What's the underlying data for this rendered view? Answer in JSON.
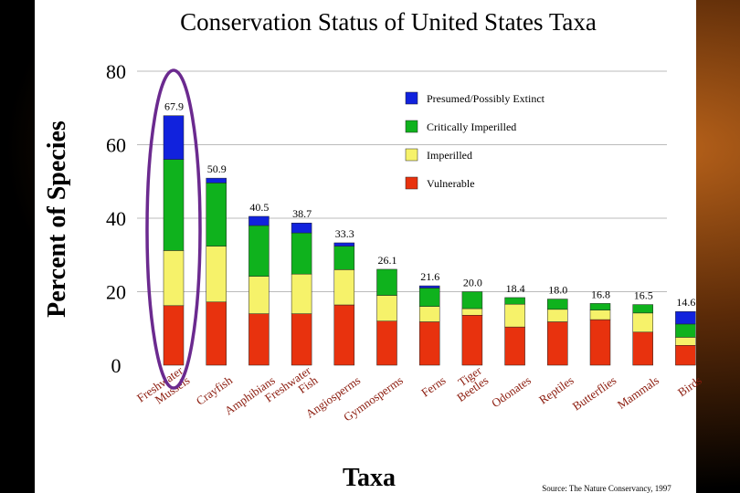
{
  "chart_data": {
    "type": "bar",
    "stacked": true,
    "title": "Conservation Status of United States Taxa",
    "xlabel": "Taxa",
    "ylabel": "Percent of Species",
    "ylim": [
      0,
      80
    ],
    "yticks": [
      0,
      20,
      40,
      60,
      80
    ],
    "source": "Source: The Nature Conservancy, 1997",
    "categories": [
      "Freshwater Mussels",
      "Crayfish",
      "Amphibians",
      "Freshwater Fish",
      "Angiosperms",
      "Gymnosperms",
      "Ferns",
      "Tiger Beetles",
      "Odonates",
      "Reptiles",
      "Butterflies",
      "Mammals",
      "Birds"
    ],
    "totals": [
      "67.9",
      "50.9",
      "40.5",
      "38.7",
      "33.3",
      "26.1",
      "21.6",
      "20.0",
      "18.4",
      "18.0",
      "16.8",
      "16.5",
      "14.6"
    ],
    "series": [
      {
        "name": "Vulnerable",
        "color": "#e8320e",
        "values": [
          16.2,
          17.2,
          14.0,
          14.0,
          16.4,
          12.0,
          11.8,
          13.6,
          10.4,
          11.8,
          12.4,
          9.0,
          5.4
        ]
      },
      {
        "name": "Imperilled",
        "color": "#f6f26a",
        "values": [
          15.0,
          15.2,
          10.2,
          10.8,
          9.6,
          7.0,
          4.2,
          1.8,
          6.2,
          3.4,
          2.6,
          5.2,
          2.2
        ]
      },
      {
        "name": "Critically Imperilled",
        "color": "#0fb21d",
        "values": [
          24.8,
          17.2,
          13.8,
          11.2,
          6.4,
          7.1,
          5.0,
          4.6,
          1.8,
          2.8,
          1.8,
          2.3,
          3.6
        ]
      },
      {
        "name": "Presumed/Possibly Extinct",
        "color": "#1122dd",
        "values": [
          11.9,
          1.3,
          2.5,
          2.7,
          0.9,
          0.0,
          0.6,
          0.0,
          0.0,
          0.0,
          0.0,
          0.0,
          3.4
        ]
      }
    ],
    "legend_order": [
      "Presumed/Possibly Extinct",
      "Critically Imperilled",
      "Imperilled",
      "Vulnerable"
    ],
    "legend_position": "top-right",
    "highlight": {
      "category": "Freshwater Mussels",
      "shape": "ellipse",
      "color": "#6b2a8f"
    }
  }
}
